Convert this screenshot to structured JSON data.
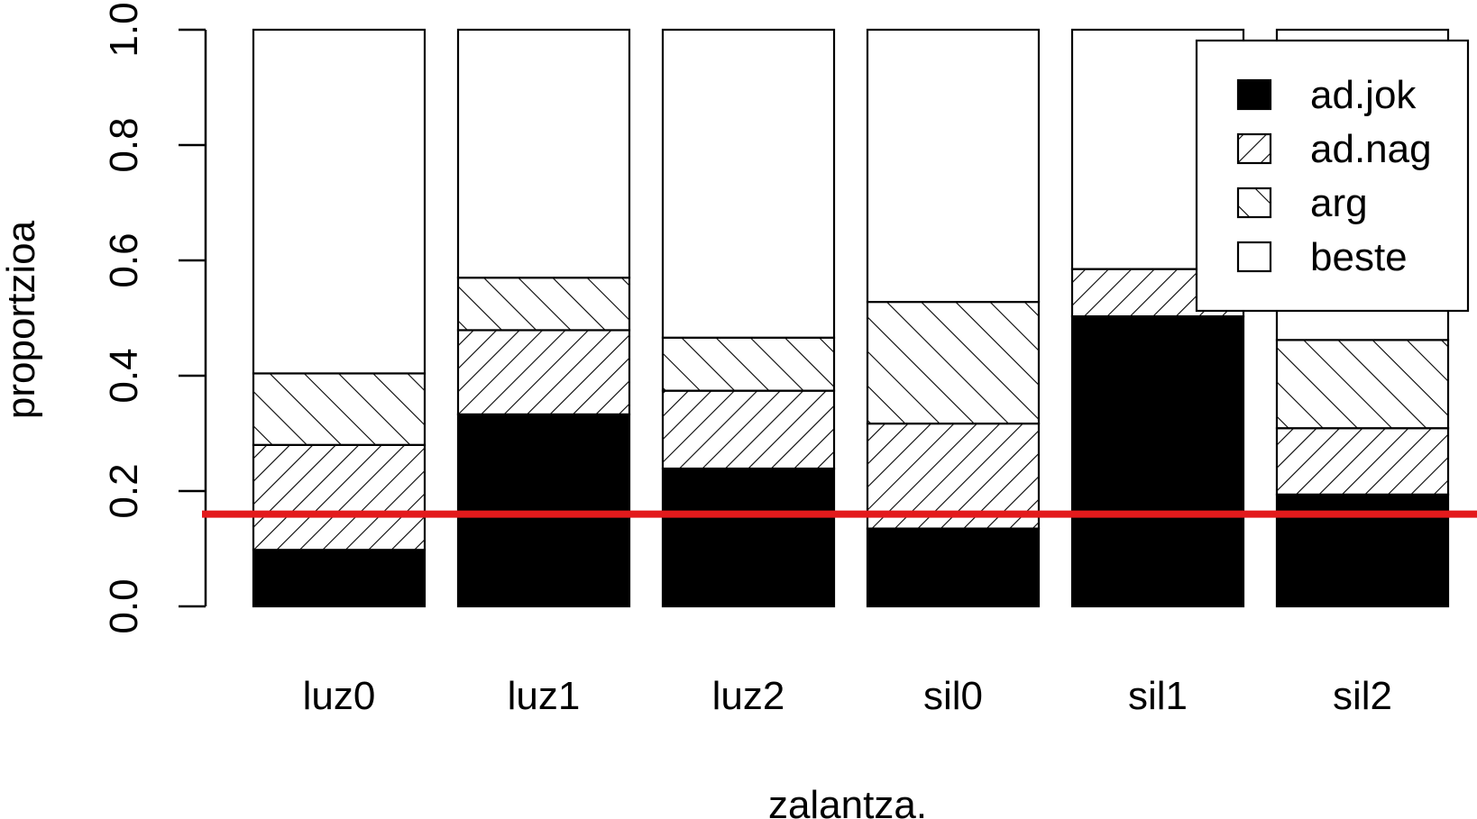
{
  "chart_data": {
    "type": "bar",
    "stacked": true,
    "categories": [
      "luz0",
      "luz1",
      "luz2",
      "sil0",
      "sil1",
      "sil2"
    ],
    "series": [
      {
        "name": "ad.jok",
        "fill": "solid",
        "values": [
          0.098,
          0.333,
          0.239,
          0.135,
          0.503,
          0.194
        ]
      },
      {
        "name": "ad.nag",
        "fill": "hatch-45",
        "values": [
          0.182,
          0.146,
          0.135,
          0.182,
          0.082,
          0.115
        ]
      },
      {
        "name": "arg",
        "fill": "hatch-135",
        "values": [
          0.124,
          0.091,
          0.092,
          0.211,
          0.0,
          0.153
        ]
      },
      {
        "name": "beste",
        "fill": "empty",
        "values": [
          0.596,
          0.43,
          0.534,
          0.472,
          0.415,
          0.538
        ]
      }
    ],
    "ylabel": "proportzioa",
    "xlabel": "zalantza.",
    "ylim": [
      0,
      1
    ],
    "yticks": [
      "0.0",
      "0.2",
      "0.4",
      "0.6",
      "0.8",
      "1.0"
    ],
    "reference_line": {
      "y": 0.16,
      "color": "#e31a1c"
    },
    "legend_position": "top-right",
    "grid": false
  }
}
